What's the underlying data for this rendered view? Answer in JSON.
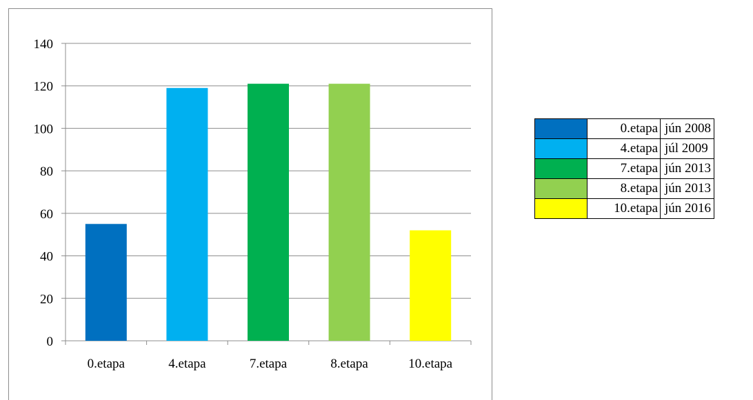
{
  "chart_data": {
    "type": "bar",
    "categories": [
      "0.etapa",
      "4.etapa",
      "7.etapa",
      "8.etapa",
      "10.etapa"
    ],
    "values": [
      55,
      119,
      121,
      121,
      52
    ],
    "colors": [
      "#0070c0",
      "#00b0f0",
      "#00b050",
      "#92d050",
      "#ffff00"
    ],
    "ylim": [
      0,
      140
    ],
    "yticks": [
      0,
      20,
      40,
      60,
      80,
      100,
      120,
      140
    ],
    "grid": true,
    "legend_table": [
      {
        "label": "0.etapa",
        "date": "jún 2008",
        "color": "#0070c0"
      },
      {
        "label": "4.etapa",
        "date": "júl 2009",
        "color": "#00b0f0"
      },
      {
        "label": "7.etapa",
        "date": "jún 2013",
        "color": "#00b050"
      },
      {
        "label": "8.etapa",
        "date": "jún 2013",
        "color": "#92d050"
      },
      {
        "label": "10.etapa",
        "date": "jún 2016",
        "color": "#ffff00"
      }
    ]
  }
}
